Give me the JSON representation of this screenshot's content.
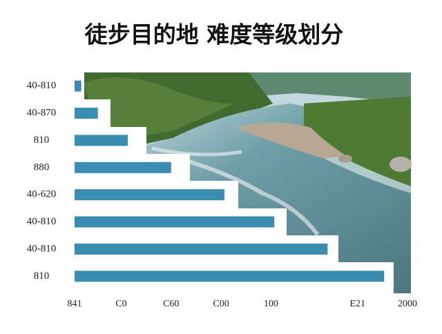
{
  "chart_data": {
    "type": "bar",
    "orientation": "horizontal",
    "title": "徒步目的地  难度等级划分",
    "categories": [
      "40-810",
      "40-870",
      "810",
      "880",
      "40-620",
      "40-810",
      "40-810",
      "810"
    ],
    "values": [
      2,
      7,
      16,
      29,
      45,
      60,
      76,
      93
    ],
    "color": "#3a8db0",
    "xlim": [
      0,
      100
    ],
    "xticks": [
      {
        "value": 0,
        "label": "841"
      },
      {
        "value": 14,
        "label": "C0"
      },
      {
        "value": 29,
        "label": "C60"
      },
      {
        "value": 44,
        "label": "C00"
      },
      {
        "value": 59,
        "label": "100"
      },
      {
        "value": 85,
        "label": "E21"
      },
      {
        "value": 100,
        "label": "2000"
      }
    ]
  }
}
